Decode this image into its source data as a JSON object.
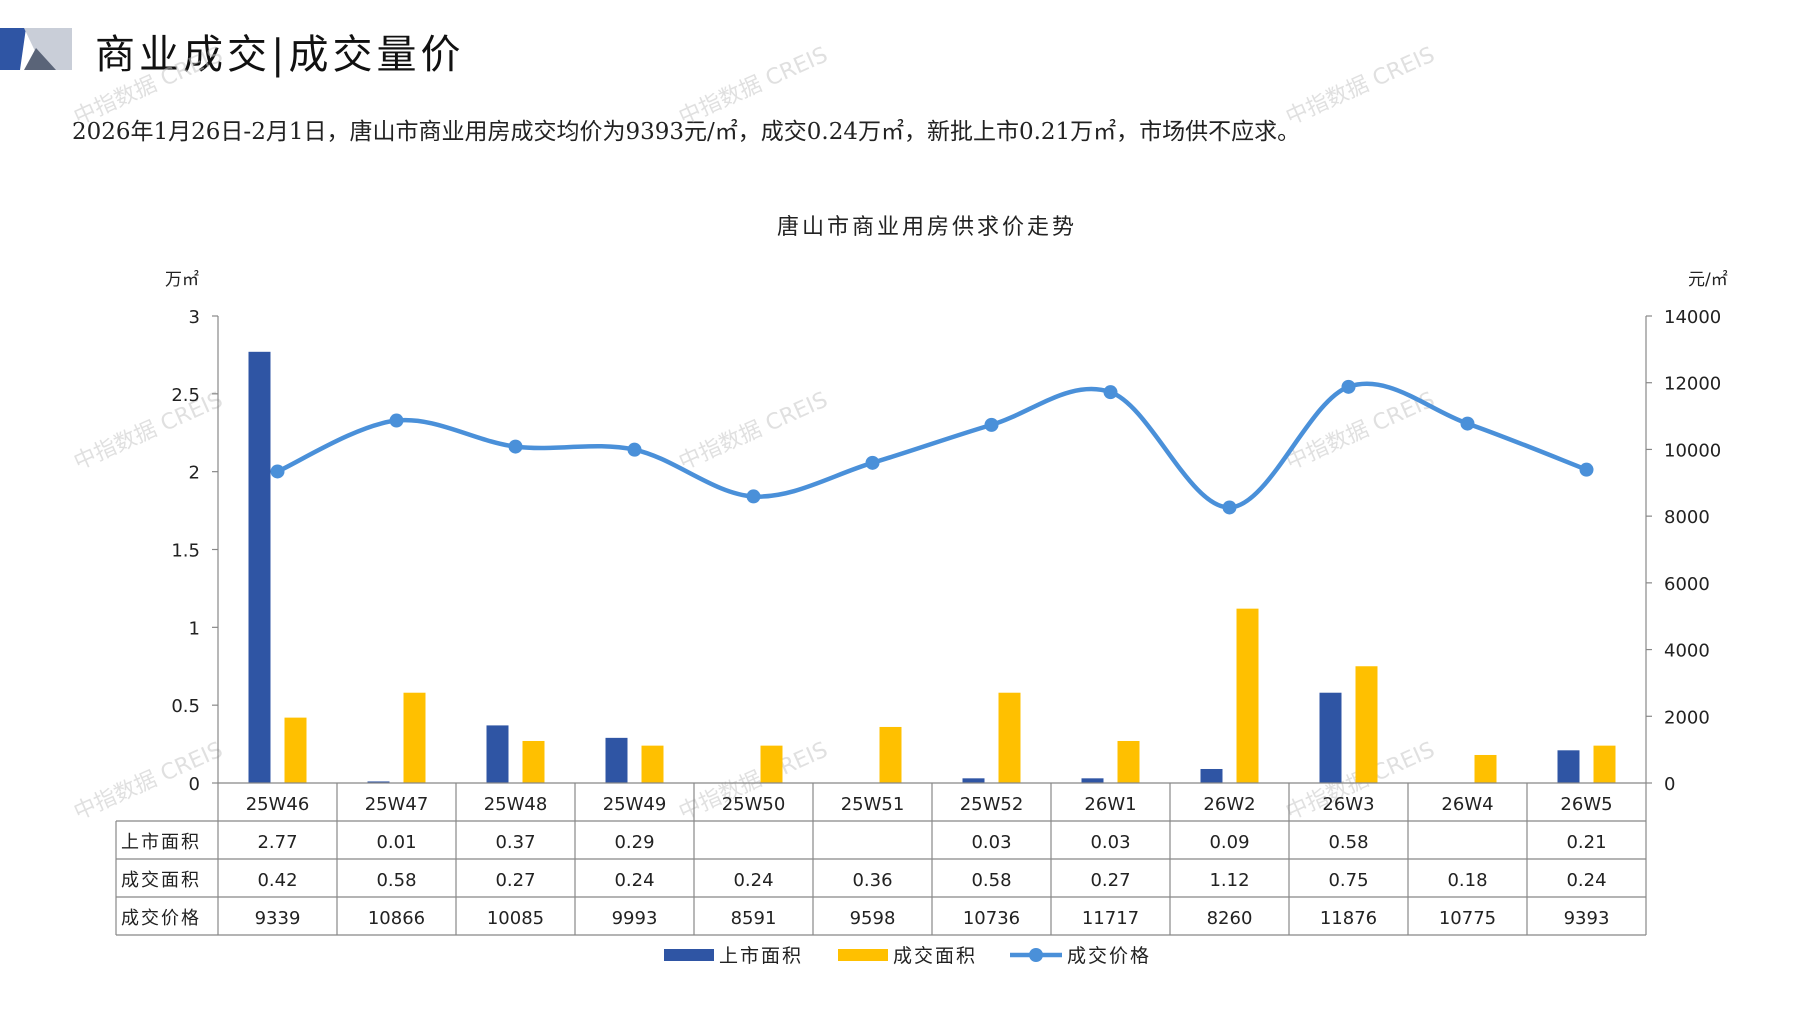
{
  "header": {
    "title": "商业成交|成交量价",
    "summary": "2026年1月26日-2月1日，唐山市商业用房成交均价为9393元/㎡，成交0.24万㎡，新批上市0.21万㎡，市场供不应求。"
  },
  "watermark": "中指数据 CREIS",
  "colors": {
    "supply": "#2F55A4",
    "deal_area": "#FFC000",
    "price": "#4A90D9",
    "header_navy": "#2F55A4",
    "header_gray": "#9AA3B5"
  },
  "chart_data": {
    "type": "bar",
    "title": "唐山市商业用房供求价走势",
    "left_unit": "万㎡",
    "right_unit": "元/㎡",
    "categories": [
      "25W46",
      "25W47",
      "25W48",
      "25W49",
      "25W50",
      "25W51",
      "25W52",
      "26W1",
      "26W2",
      "26W3",
      "26W4",
      "26W5"
    ],
    "ylim_left": [
      0,
      3
    ],
    "yticks_left": [
      "0",
      "0.5",
      "1",
      "1.5",
      "2",
      "2.5",
      "3"
    ],
    "ylim_right": [
      0,
      14000
    ],
    "yticks_right": [
      "0",
      "2000",
      "4000",
      "6000",
      "8000",
      "10000",
      "12000",
      "14000"
    ],
    "series": [
      {
        "name": "上市面积",
        "type": "bar",
        "axis": "left",
        "values": [
          2.77,
          0.01,
          0.37,
          0.29,
          null,
          null,
          0.03,
          0.03,
          0.09,
          0.58,
          null,
          0.21
        ],
        "labels": [
          "2.77",
          "0.01",
          "0.37",
          "0.29",
          "",
          "",
          "0.03",
          "0.03",
          "0.09",
          "0.58",
          "",
          "0.21"
        ]
      },
      {
        "name": "成交面积",
        "type": "bar",
        "axis": "left",
        "values": [
          0.42,
          0.58,
          0.27,
          0.24,
          0.24,
          0.36,
          0.58,
          0.27,
          1.12,
          0.75,
          0.18,
          0.24
        ],
        "labels": [
          "0.42",
          "0.58",
          "0.27",
          "0.24",
          "0.24",
          "0.36",
          "0.58",
          "0.27",
          "1.12",
          "0.75",
          "0.18",
          "0.24"
        ]
      },
      {
        "name": "成交价格",
        "type": "line",
        "axis": "right",
        "values": [
          9339,
          10866,
          10085,
          9993,
          8591,
          9598,
          10736,
          11717,
          8260,
          11876,
          10775,
          9393
        ],
        "labels": [
          "9339",
          "10866",
          "10085",
          "9993",
          "8591",
          "9598",
          "10736",
          "11717",
          "8260",
          "11876",
          "10775",
          "9393"
        ]
      }
    ],
    "grid": false,
    "legend": "bottom"
  }
}
